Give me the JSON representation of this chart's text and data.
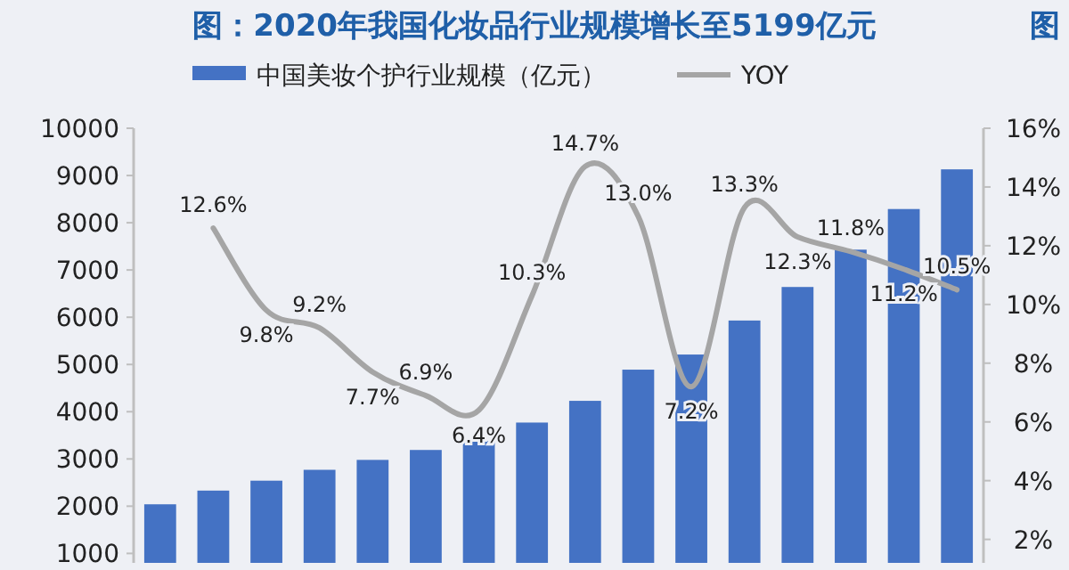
{
  "chart_data": {
    "type": "bar",
    "title": "图：2020年我国化妆品行业规模增长至5199亿元",
    "annotations": [
      "图"
    ],
    "categories": [
      null,
      null,
      null,
      null,
      null,
      null,
      null,
      null,
      null,
      null,
      null,
      null,
      null,
      null,
      null,
      null
    ],
    "series": [
      {
        "name": "中国美妆个护行业规模（亿元）",
        "color": "#4472c4",
        "values": [
          2040,
          2330,
          2540,
          2770,
          2980,
          3190,
          3380,
          3770,
          4230,
          4890,
          5210,
          5930,
          6640,
          7430,
          8290,
          9130
        ]
      },
      {
        "name": "YOY",
        "type": "line",
        "axis": "y2",
        "color": "#a5a5a5",
        "value_labels": [
          null,
          "12.6%",
          "9.8%",
          "9.2%",
          "7.7%",
          "6.9%",
          "6.4%",
          "10.3%",
          "14.7%",
          "13.0%",
          "7.2%",
          "13.3%",
          "12.3%",
          "11.8%",
          "11.2%",
          "10.5%"
        ],
        "values": [
          null,
          12.6,
          9.8,
          9.2,
          7.7,
          6.9,
          6.4,
          10.3,
          14.7,
          13.0,
          7.2,
          13.3,
          12.3,
          11.8,
          11.2,
          10.5
        ]
      }
    ],
    "ylim": [
      800,
      10000
    ],
    "yticks": [
      1000,
      2000,
      3000,
      4000,
      5000,
      6000,
      7000,
      8000,
      9000,
      10000
    ],
    "y2lim": [
      1.2,
      16
    ],
    "y2ticks": [
      {
        "value": 2,
        "label": "2%"
      },
      {
        "value": 4,
        "label": "4%"
      },
      {
        "value": 6,
        "label": "6%"
      },
      {
        "value": 8,
        "label": "8%"
      },
      {
        "value": 10,
        "label": "10%"
      },
      {
        "value": 12,
        "label": "12%"
      },
      {
        "value": 14,
        "label": "14%"
      },
      {
        "value": 16,
        "label": "16%"
      }
    ],
    "grid": false,
    "legend": "top",
    "tick_labels": "y"
  }
}
